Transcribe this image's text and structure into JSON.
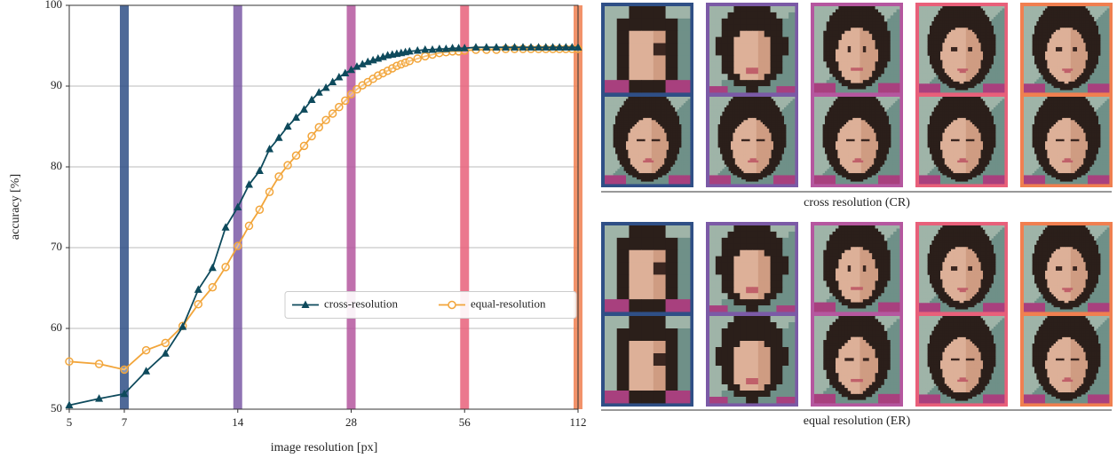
{
  "chart_data": {
    "type": "line",
    "xlabel": "image resolution [px]",
    "ylabel": "accuracy [%]",
    "log_x": true,
    "grid": true,
    "legend": "center right",
    "xlim": [
      5,
      112
    ],
    "xticks": [
      5,
      7,
      14,
      28,
      56,
      112
    ],
    "ylim": [
      50,
      100
    ],
    "yticks": [
      50,
      60,
      70,
      80,
      90,
      100
    ],
    "highlights": [
      {
        "x": 7,
        "color": "#2f4f86"
      },
      {
        "x": 14,
        "color": "#7b5aa6"
      },
      {
        "x": 28,
        "color": "#b5579f"
      },
      {
        "x": 56,
        "color": "#e8607a"
      },
      {
        "x": 112,
        "color": "#f07f50"
      }
    ],
    "x": [
      5,
      6,
      7,
      8,
      9,
      10,
      11,
      12,
      13,
      14,
      15,
      16,
      17,
      18,
      19,
      20,
      21,
      22,
      23,
      24,
      25,
      26,
      27,
      28,
      29,
      30,
      31,
      32,
      33,
      34,
      35,
      36,
      37,
      38,
      39,
      40,
      42,
      44,
      46,
      48,
      50,
      52,
      54,
      56,
      60,
      64,
      68,
      72,
      76,
      80,
      84,
      88,
      92,
      96,
      100,
      104,
      108,
      112
    ],
    "series": [
      {
        "name": "cross-resolution",
        "color": "#0e4a5c",
        "marker": "triangle",
        "values": [
          50.5,
          51.3,
          51.9,
          54.7,
          56.9,
          60.2,
          64.8,
          67.5,
          72.5,
          75.0,
          77.8,
          79.5,
          82.2,
          83.6,
          85.0,
          86.1,
          87.1,
          88.3,
          89.2,
          89.8,
          90.5,
          91.1,
          91.6,
          92.0,
          92.4,
          92.7,
          93.0,
          93.2,
          93.4,
          93.6,
          93.8,
          93.9,
          94.0,
          94.1,
          94.2,
          94.3,
          94.4,
          94.5,
          94.5,
          94.6,
          94.6,
          94.7,
          94.7,
          94.7,
          94.8,
          94.8,
          94.8,
          94.8,
          94.8,
          94.8,
          94.8,
          94.8,
          94.8,
          94.8,
          94.8,
          94.8,
          94.8,
          94.8
        ]
      },
      {
        "name": "equal-resolution",
        "color": "#f2a53a",
        "marker": "circle",
        "values": [
          55.9,
          55.6,
          54.9,
          57.3,
          58.2,
          60.3,
          63.0,
          65.1,
          67.6,
          70.2,
          72.7,
          74.7,
          76.9,
          78.8,
          80.2,
          81.4,
          82.6,
          83.8,
          84.9,
          85.8,
          86.6,
          87.4,
          88.2,
          89.0,
          89.6,
          90.1,
          90.5,
          90.9,
          91.3,
          91.6,
          91.9,
          92.2,
          92.5,
          92.7,
          92.9,
          93.1,
          93.4,
          93.7,
          93.9,
          94.1,
          94.2,
          94.3,
          94.3,
          94.4,
          94.5,
          94.5,
          94.5,
          94.6,
          94.6,
          94.6,
          94.6,
          94.6,
          94.6,
          94.6,
          94.6,
          94.6,
          94.6,
          94.6
        ]
      }
    ]
  },
  "figure": {
    "cr_caption": "cross resolution (CR)",
    "er_caption": "equal resolution (ER)"
  }
}
